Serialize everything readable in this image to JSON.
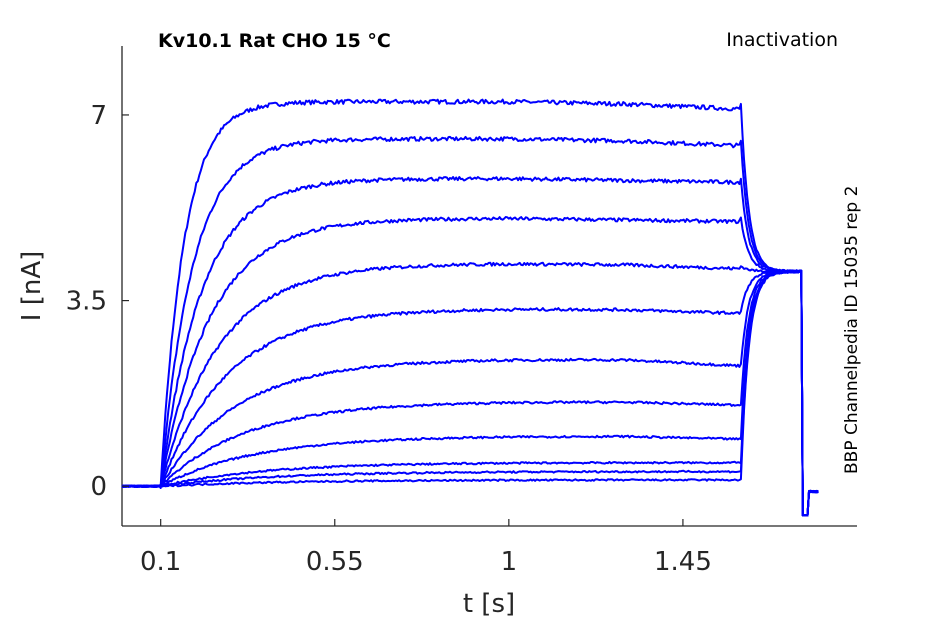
{
  "title": "Kv10.1  Rat  CHO  15 °C",
  "protocol": "Inactivation",
  "source": "BBP Channelpedia ID 15035 rep 2",
  "chart_data": {
    "type": "line",
    "xlabel": "t [s]",
    "ylabel": "I [nA]",
    "xlim": [
      0.0,
      1.9
    ],
    "ylim": [
      -0.75,
      8.3
    ],
    "xticks": [
      0.1,
      0.55,
      1,
      1.45
    ],
    "xtick_labels": [
      "0.1",
      "0.55",
      "1",
      "1.45"
    ],
    "yticks": [
      0,
      3.5,
      7
    ],
    "ytick_labels": [
      "0",
      "3.5",
      "7"
    ],
    "grid": false,
    "line_color": "#0000ff",
    "step_on": 0.1,
    "step_off": 1.6,
    "trace_end": 1.8,
    "baseline_start": 0.0,
    "steady_state_after_pulse": 4.05,
    "series": [
      {
        "peak": 7.25,
        "end": 7.2
      },
      {
        "peak": 6.55,
        "end": 6.5
      },
      {
        "peak": 5.8,
        "end": 5.8
      },
      {
        "peak": 5.05,
        "end": 5.05
      },
      {
        "peak": 4.2,
        "end": 4.15
      },
      {
        "peak": 3.35,
        "end": 3.3
      },
      {
        "peak": 2.4,
        "end": 2.3
      },
      {
        "peak": 1.6,
        "end": 1.55
      },
      {
        "peak": 0.95,
        "end": 0.9
      },
      {
        "peak": 0.45,
        "end": 0.45
      },
      {
        "peak": 0.28,
        "end": 0.28
      },
      {
        "peak": 0.12,
        "end": 0.12
      }
    ]
  }
}
